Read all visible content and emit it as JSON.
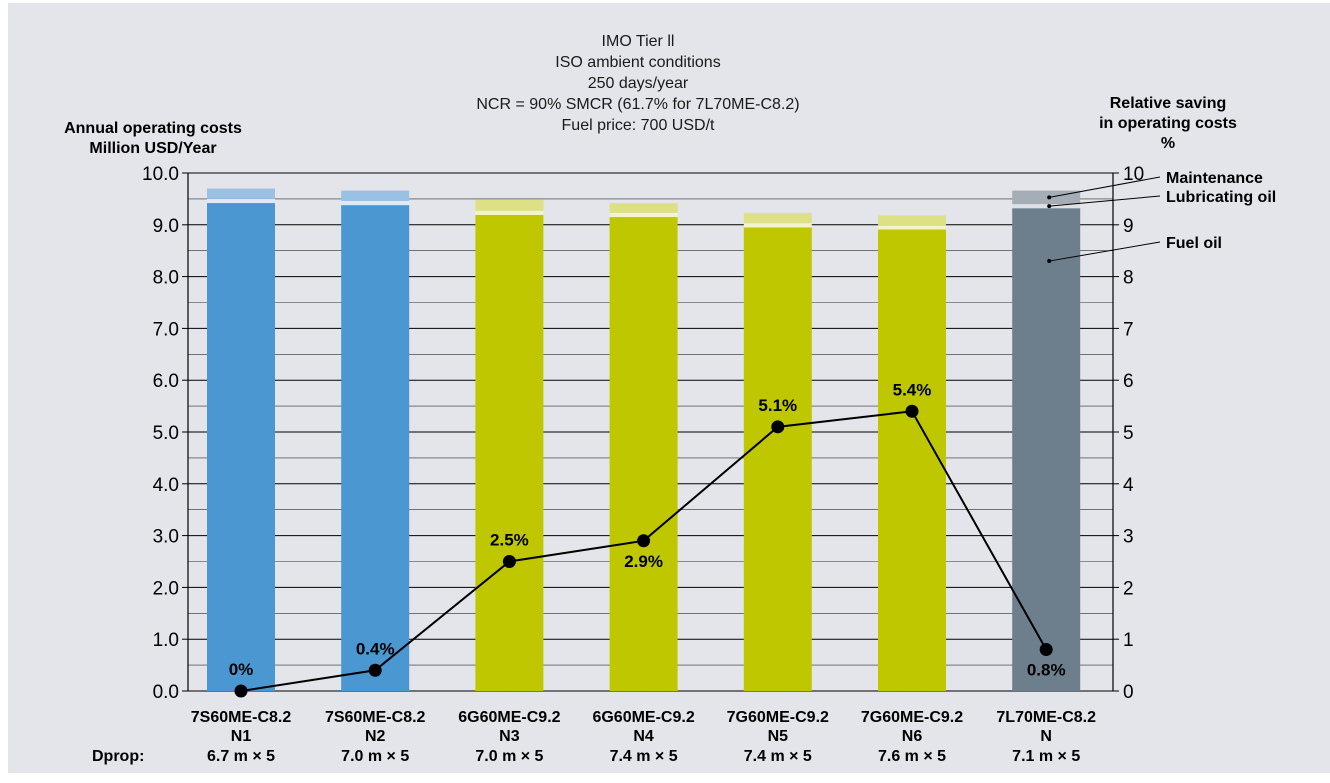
{
  "chart_data": {
    "type": "bar",
    "title_lines": [
      "IMO Tier ll",
      "ISO ambient conditions",
      "250 days/year",
      "NCR = 90% SMCR (61.7% for 7L70ME-C8.2)",
      "Fuel price: 700 USD/t"
    ],
    "y_left_label": [
      "Annual operating costs",
      "Million USD/Year"
    ],
    "y_right_label": [
      "Relative saving",
      "in operating costs",
      "%"
    ],
    "y_left_ticks": [
      "0.0",
      "1.0",
      "2.0",
      "3.0",
      "4.0",
      "5.0",
      "6.0",
      "7.0",
      "8.0",
      "9.0",
      "10.0"
    ],
    "y_right_ticks": [
      "0",
      "1",
      "2",
      "3",
      "4",
      "5",
      "6",
      "7",
      "8",
      "9",
      "10"
    ],
    "ylim": [
      0,
      10
    ],
    "y_minor_step": 0.5,
    "grid": true,
    "dprop_label": "Dprop:",
    "categories": [
      {
        "engine": "7S60ME-C8.2",
        "case": "N1",
        "dprop": "6.7 m × 5"
      },
      {
        "engine": "7S60ME-C8.2",
        "case": "N2",
        "dprop": "7.0 m × 5"
      },
      {
        "engine": "6G60ME-C9.2",
        "case": "N3",
        "dprop": "7.0 m × 5"
      },
      {
        "engine": "6G60ME-C9.2",
        "case": "N4",
        "dprop": "7.4 m × 5"
      },
      {
        "engine": "7G60ME-C9.2",
        "case": "N5",
        "dprop": "7.4 m × 5"
      },
      {
        "engine": "7G60ME-C9.2",
        "case": "N6",
        "dprop": "7.6 m × 5"
      },
      {
        "engine": "7L70ME-C8.2",
        "case": "N",
        "dprop": "7.1 m × 5"
      }
    ],
    "series": [
      {
        "name": "Fuel oil",
        "values": [
          9.42,
          9.38,
          9.19,
          9.15,
          8.95,
          8.91,
          9.32
        ]
      },
      {
        "name": "Lubricating oil",
        "values": [
          0.08,
          0.08,
          0.08,
          0.08,
          0.08,
          0.08,
          0.08
        ]
      },
      {
        "name": "Maintenance",
        "values": [
          0.2,
          0.2,
          0.21,
          0.19,
          0.2,
          0.19,
          0.26
        ]
      }
    ],
    "saving_percent": {
      "values": [
        0,
        0.4,
        2.5,
        2.9,
        5.1,
        5.4,
        0.8
      ],
      "labels": [
        "0%",
        "0.4%",
        "2.5%",
        "2.9%",
        "5.1%",
        "5.4%",
        "0.8%"
      ],
      "label_position": [
        "above",
        "above",
        "above",
        "below",
        "above",
        "above",
        "below"
      ]
    },
    "bar_groups": [
      "blue",
      "blue",
      "green",
      "green",
      "green",
      "green",
      "gray"
    ],
    "colors": {
      "background": "#e3e5ea",
      "blue": {
        "fuel": "#4a97d1",
        "lube": "#dfeaf5",
        "maint": "#9ac0e3"
      },
      "green": {
        "fuel": "#bfc700",
        "lube": "#f2f4cb",
        "maint": "#dde085"
      },
      "gray": {
        "fuel": "#6d7e8d",
        "lube": "#dde0e4",
        "maint": "#a5adb6"
      },
      "line": "#000000"
    }
  }
}
